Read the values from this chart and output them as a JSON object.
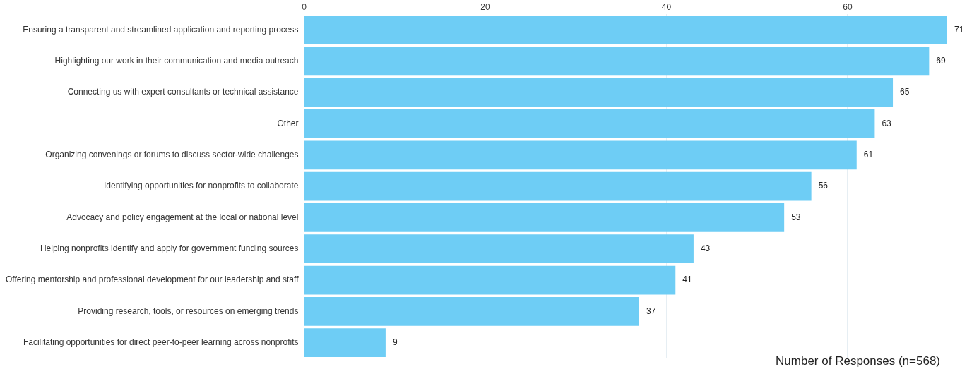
{
  "chart_data": {
    "type": "bar",
    "orientation": "horizontal",
    "xlabel": "Number of Responses (n=568)",
    "categories": [
      "Ensuring a transparent and streamlined application and reporting process",
      "Highlighting our work in their communication and media outreach",
      "Connecting us with expert consultants or technical assistance",
      "Other",
      "Organizing convenings or forums to discuss sector-wide challenges",
      "Identifying opportunities for nonprofits to collaborate",
      "Advocacy and policy engagement at the local or national level",
      "Helping nonprofits identify and apply for government funding sources",
      "Offering mentorship and professional development for our leadership and staff",
      "Providing research, tools, or resources on emerging trends",
      "Facilitating opportunities for direct peer-to-peer learning across nonprofits"
    ],
    "values": [
      71,
      69,
      65,
      63,
      61,
      56,
      53,
      43,
      41,
      37,
      9
    ],
    "color": "#6ecdf5",
    "xlim": [
      0,
      71
    ],
    "xticks": [
      0,
      20,
      40,
      60
    ],
    "grid": "x",
    "data_labels": true,
    "legend": false
  }
}
